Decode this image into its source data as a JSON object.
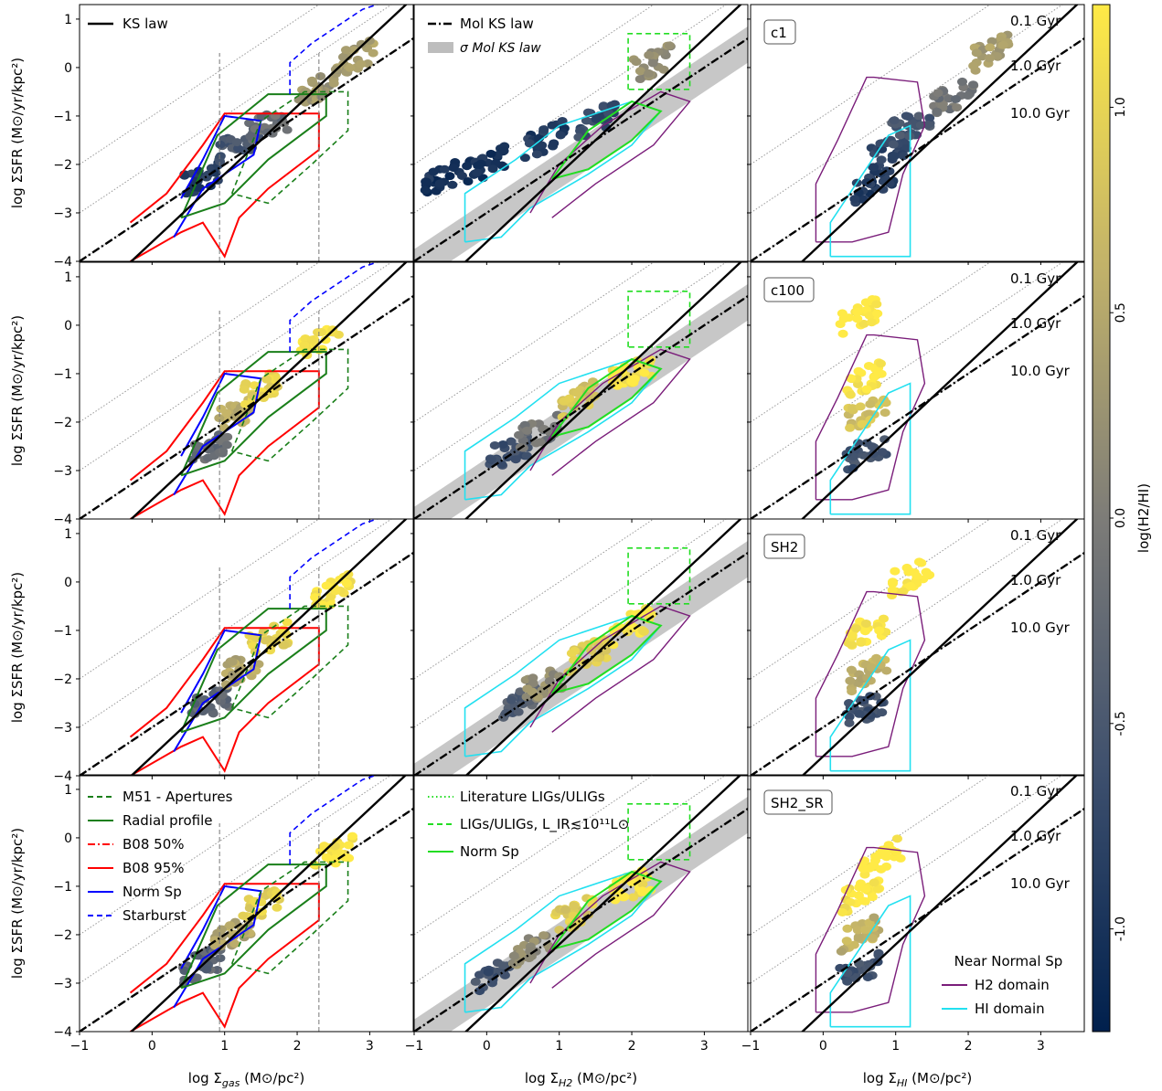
{
  "chart_data": {
    "type": "scatter",
    "description_grid": "3 columns x 4 rows of hexbin scatter panels with KS-law lines and contour domains",
    "rows": [
      "",
      "c1",
      "c100",
      "SH2",
      "SH2_SR"
    ],
    "row_labels": [
      "c1",
      "c100",
      "SH2",
      "SH2_SR"
    ],
    "xlabels": [
      "log Σ_gas (M⊙/pc²)",
      "log Σ_H2 (M⊙/pc²)",
      "log Σ_HI (M⊙/pc²)"
    ],
    "ylabel": "log Σ_SFR (M⊙/yr/kpc²)",
    "xlim": [
      -1.0,
      3.6
    ],
    "ylim": [
      -4.0,
      1.3
    ],
    "xticks": [
      -1,
      0,
      1,
      2,
      3
    ],
    "yticks": [
      -4,
      -3,
      -2,
      -1,
      0,
      1
    ],
    "colorbar": {
      "label": "log(H2/HI)",
      "range": [
        -1.25,
        1.25
      ],
      "ticks": [
        -1.0,
        -0.5,
        0.0,
        0.5,
        1.0
      ],
      "colormap": [
        "#00204d",
        "#3d4f6d",
        "#7d7c78",
        "#c3b369",
        "#ffea46"
      ]
    },
    "depletion_times": [
      "0.1 Gyr",
      "1.0 Gyr",
      "10.0 Gyr"
    ],
    "lines": {
      "ks_law": {
        "name": "KS law",
        "slope": 1.4,
        "intercept": -3.6,
        "color": "#000000"
      },
      "mol_ks_law": {
        "name": "Mol KS law",
        "slope": 1.0,
        "intercept": -3.0,
        "color": "#000000"
      },
      "mol_ks_band": {
        "name": "σ Mol KS law",
        "color": "#bdbdbd"
      }
    },
    "legends": {
      "col0_top": [
        "KS law"
      ],
      "col1_top": [
        "Mol KS law",
        "σ Mol KS law"
      ],
      "col0_bottom": [
        "M51 - Apertures",
        "Radial profile",
        "B08 50%",
        "B08 95%",
        "Norm Sp",
        "Starburst"
      ],
      "col1_bottom": [
        "Literature LIGs/ULIGs",
        "LIGs/ULIGs, L_IR≲10¹¹L⊙",
        "Norm Sp"
      ],
      "col2_bottom_title": "Near Normal Sp",
      "col2_bottom": [
        "H2 domain",
        "HI domain"
      ]
    },
    "series_colors": {
      "m51_apertures": "#1a7f1a",
      "radial_profile": "#1a7f1a",
      "b08_50": "#ff0000",
      "b08_95": "#ff0000",
      "norm_sp": "#0000ff",
      "starburst": "#0000ff",
      "lit_ligs": "#22dd22",
      "ligs": "#22dd22",
      "norm_sp_mol": "#22dd22",
      "h2_domain": "#7a1d7a",
      "hi_domain": "#22e0f0"
    },
    "hexbin_clusters": {
      "c1": {
        "gas": [
          [
            0.7,
            -2.3,
            -0.9
          ],
          [
            1.2,
            -1.6,
            -0.5
          ],
          [
            1.6,
            -1.2,
            -0.2
          ],
          [
            2.3,
            -0.4,
            0.3
          ],
          [
            2.8,
            0.2,
            0.4
          ]
        ],
        "h2": [
          [
            -0.6,
            -2.3,
            -1.0
          ],
          [
            0.0,
            -2.0,
            -1.0
          ],
          [
            0.8,
            -1.5,
            -0.9
          ],
          [
            1.5,
            -1.1,
            -0.7
          ],
          [
            2.3,
            0.1,
            0.2
          ]
        ],
        "hi": [
          [
            0.7,
            -2.4,
            -0.9
          ],
          [
            0.9,
            -1.7,
            -0.8
          ],
          [
            1.2,
            -1.2,
            -0.5
          ],
          [
            1.8,
            -0.6,
            -0.1
          ],
          [
            2.3,
            0.3,
            0.4
          ]
        ]
      },
      "c100": {
        "gas": [
          [
            0.8,
            -2.5,
            -0.2
          ],
          [
            1.2,
            -1.8,
            0.6
          ],
          [
            1.5,
            -1.3,
            1.0
          ],
          [
            2.3,
            -0.3,
            1.2
          ]
        ],
        "h2": [
          [
            0.3,
            -2.6,
            -0.6
          ],
          [
            0.7,
            -2.2,
            -0.1
          ],
          [
            1.3,
            -1.5,
            0.8
          ],
          [
            2.0,
            -1.0,
            1.2
          ]
        ],
        "hi": [
          [
            0.6,
            -2.6,
            -0.6
          ],
          [
            0.6,
            -1.8,
            0.8
          ],
          [
            0.6,
            -1.1,
            1.2
          ],
          [
            0.5,
            0.2,
            1.3
          ]
        ]
      },
      "SH2": {
        "gas": [
          [
            0.8,
            -2.5,
            -0.3
          ],
          [
            1.2,
            -1.8,
            0.5
          ],
          [
            1.6,
            -1.2,
            1.0
          ],
          [
            2.5,
            -0.2,
            1.2
          ]
        ],
        "h2": [
          [
            0.4,
            -2.5,
            -0.4
          ],
          [
            0.8,
            -2.1,
            0.2
          ],
          [
            1.4,
            -1.5,
            0.9
          ],
          [
            2.0,
            -0.9,
            1.2
          ]
        ],
        "hi": [
          [
            0.6,
            -2.6,
            -0.6
          ],
          [
            0.6,
            -1.9,
            0.6
          ],
          [
            0.6,
            -1.0,
            1.2
          ],
          [
            1.2,
            0.1,
            1.3
          ]
        ]
      },
      "SH2_SR": {
        "gas": [
          [
            0.7,
            -2.6,
            -0.3
          ],
          [
            1.1,
            -2.0,
            0.5
          ],
          [
            1.5,
            -1.4,
            1.0
          ],
          [
            2.5,
            -0.3,
            1.2
          ]
        ],
        "h2": [
          [
            0.1,
            -2.8,
            -0.6
          ],
          [
            0.6,
            -2.3,
            0.2
          ],
          [
            1.2,
            -1.6,
            0.9
          ],
          [
            2.0,
            -1.0,
            1.2
          ]
        ],
        "hi": [
          [
            0.5,
            -2.7,
            -0.6
          ],
          [
            0.5,
            -2.0,
            0.6
          ],
          [
            0.5,
            -1.2,
            1.2
          ],
          [
            0.8,
            -0.4,
            1.3
          ]
        ]
      }
    }
  }
}
